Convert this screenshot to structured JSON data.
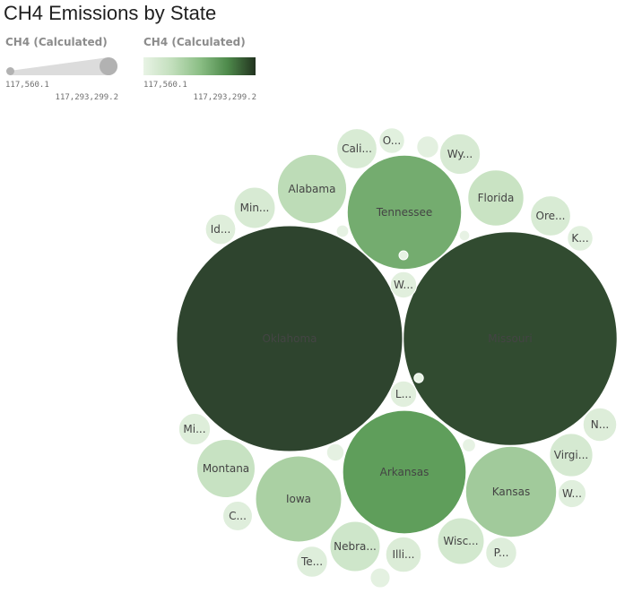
{
  "page": {
    "title": "CH4 Emissions by State"
  },
  "legend": {
    "size": {
      "title": "CH4 (Calculated)",
      "min_label": "117,560.1",
      "max_label": "117,293,299.2"
    },
    "color": {
      "title": "CH4 (Calculated)",
      "min_label": "117,560.1",
      "max_label": "117,293,299.2",
      "gradient_colors": [
        "#e8f3e5",
        "#c3dfbd",
        "#8cbf86",
        "#4e8a4b",
        "#22331f"
      ]
    }
  },
  "chart_data": {
    "type": "bubble",
    "title": "CH4 Emissions by State",
    "measure": "CH4 (Calculated)",
    "value_range": [
      117560.1,
      117293299.2
    ],
    "bubbles": [
      {
        "label": "Oklahoma",
        "value": 117293299.2
      },
      {
        "label": "Missouri",
        "value": 105000000
      },
      {
        "label": "Arkansas",
        "value": 35000000
      },
      {
        "label": "Tennessee",
        "value": 30000000
      },
      {
        "label": "Kansas",
        "value": 19000000
      },
      {
        "label": "Iowa",
        "value": 17000000
      },
      {
        "label": "Alabama",
        "value": 11000000
      },
      {
        "label": "Montana",
        "value": 7800000
      },
      {
        "label": "Florida",
        "value": 7200000
      },
      {
        "label": "Wisc...",
        "value": 5000000
      },
      {
        "label": "Nebra...",
        "value": 5800000
      },
      {
        "label": "Wy...",
        "value": 3800000
      },
      {
        "label": "Cali...",
        "value": 3700000
      },
      {
        "label": "Virgi...",
        "value": 4300000
      },
      {
        "label": "Min...",
        "value": 3900000
      },
      {
        "label": "Ore...",
        "value": 3700000
      },
      {
        "label": "N...",
        "value": 2600000
      },
      {
        "label": "Illi...",
        "value": 2900000
      },
      {
        "label": "Mi...",
        "value": 2300000
      },
      {
        "label": "C...",
        "value": 2000000
      },
      {
        "label": "Te...",
        "value": 2200000
      },
      {
        "label": "P...",
        "value": 2200000
      },
      {
        "label": "W...",
        "value": 1600000
      },
      {
        "label": "W...",
        "value": 1800000
      },
      {
        "label": "L...",
        "value": 1600000
      },
      {
        "label": "Id...",
        "value": 2100000
      },
      {
        "label": "K...",
        "value": 1500000
      },
      {
        "label": "O...",
        "value": 1500000
      },
      {
        "label": "",
        "value": 1100000
      },
      {
        "label": "",
        "value": 900000
      },
      {
        "label": "",
        "value": 700000
      },
      {
        "label": "",
        "value": 400000
      },
      {
        "label": "",
        "value": 350000
      },
      {
        "label": "",
        "value": 250000
      },
      {
        "label": "",
        "value": 200000
      },
      {
        "label": "",
        "value": 117560.1
      }
    ]
  }
}
